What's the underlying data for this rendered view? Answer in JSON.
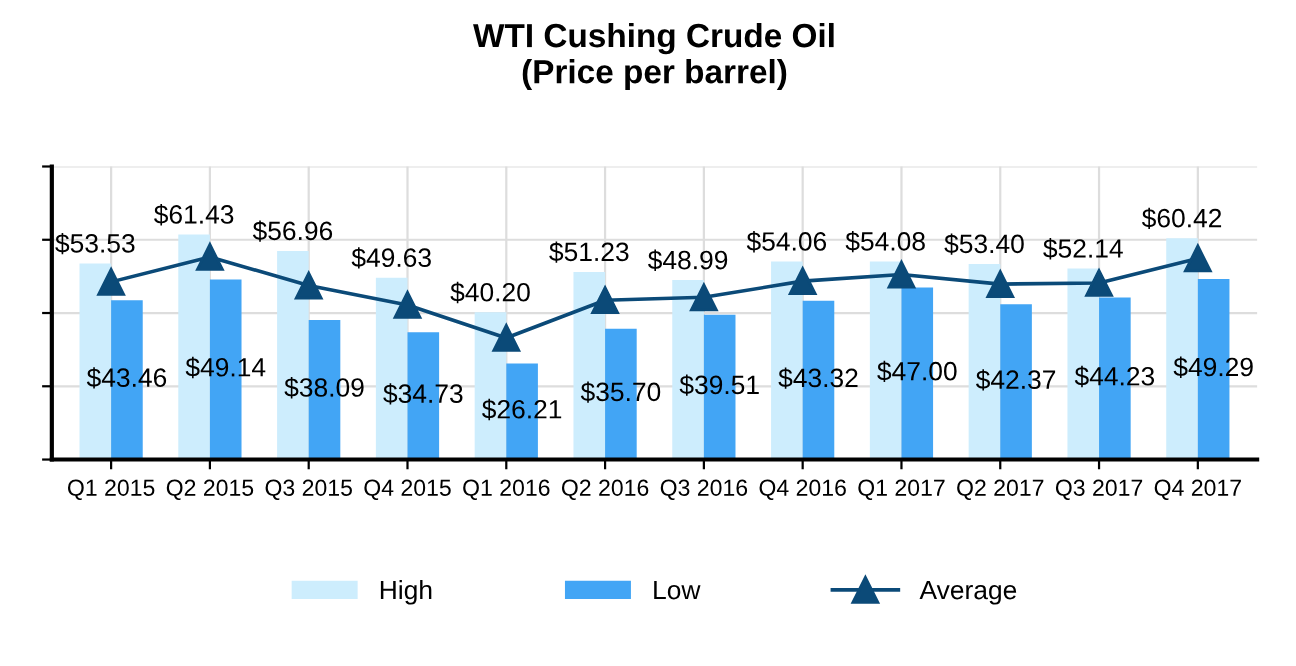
{
  "chart_data": {
    "type": "bar",
    "title": "WTI Cushing Crude Oil\n(Price per barrel)",
    "categories": [
      "Q1 2015",
      "Q2 2015",
      "Q3 2015",
      "Q4 2015",
      "Q1 2016",
      "Q2 2016",
      "Q3 2016",
      "Q4 2016",
      "Q1 2017",
      "Q2 2017",
      "Q3 2017",
      "Q4 2017"
    ],
    "series": [
      {
        "name": "High",
        "color": "#cdedfd",
        "values": [
          53.53,
          61.43,
          56.96,
          49.63,
          40.2,
          51.23,
          48.99,
          54.06,
          54.08,
          53.4,
          52.14,
          60.42
        ],
        "value_labels": [
          "$53.53",
          "$61.43",
          "$56.96",
          "$49.63",
          "$40.20",
          "$51.23",
          "$48.99",
          "$54.06",
          "$54.08",
          "$53.40",
          "$52.14",
          "$60.42"
        ]
      },
      {
        "name": "Low",
        "color": "#42a5f5",
        "values": [
          43.46,
          49.14,
          38.09,
          34.73,
          26.21,
          35.7,
          39.51,
          43.32,
          47.0,
          42.37,
          44.23,
          49.29
        ],
        "value_labels": [
          "$43.46",
          "$49.14",
          "$38.09",
          "$34.73",
          "$26.21",
          "$35.70",
          "$39.51",
          "$43.32",
          "$47.00",
          "$42.37",
          "$44.23",
          "$49.29"
        ]
      },
      {
        "name": "Average",
        "type": "line",
        "color": "#0b4a78",
        "marker": "triangle",
        "values": [
          48.5,
          55.3,
          47.5,
          42.2,
          33.2,
          43.5,
          44.3,
          48.7,
          50.5,
          47.9,
          48.2,
          54.9
        ]
      }
    ],
    "ylim": [
      0,
      80
    ],
    "yticks": [
      {
        "value": 0,
        "label": null
      },
      {
        "value": 20,
        "label": null
      },
      {
        "value": 40,
        "label": null
      },
      {
        "value": 60,
        "label": null
      },
      {
        "value": 80,
        "label": null
      }
    ],
    "tick_labels": "x",
    "grid": true,
    "legend": "bottom"
  }
}
